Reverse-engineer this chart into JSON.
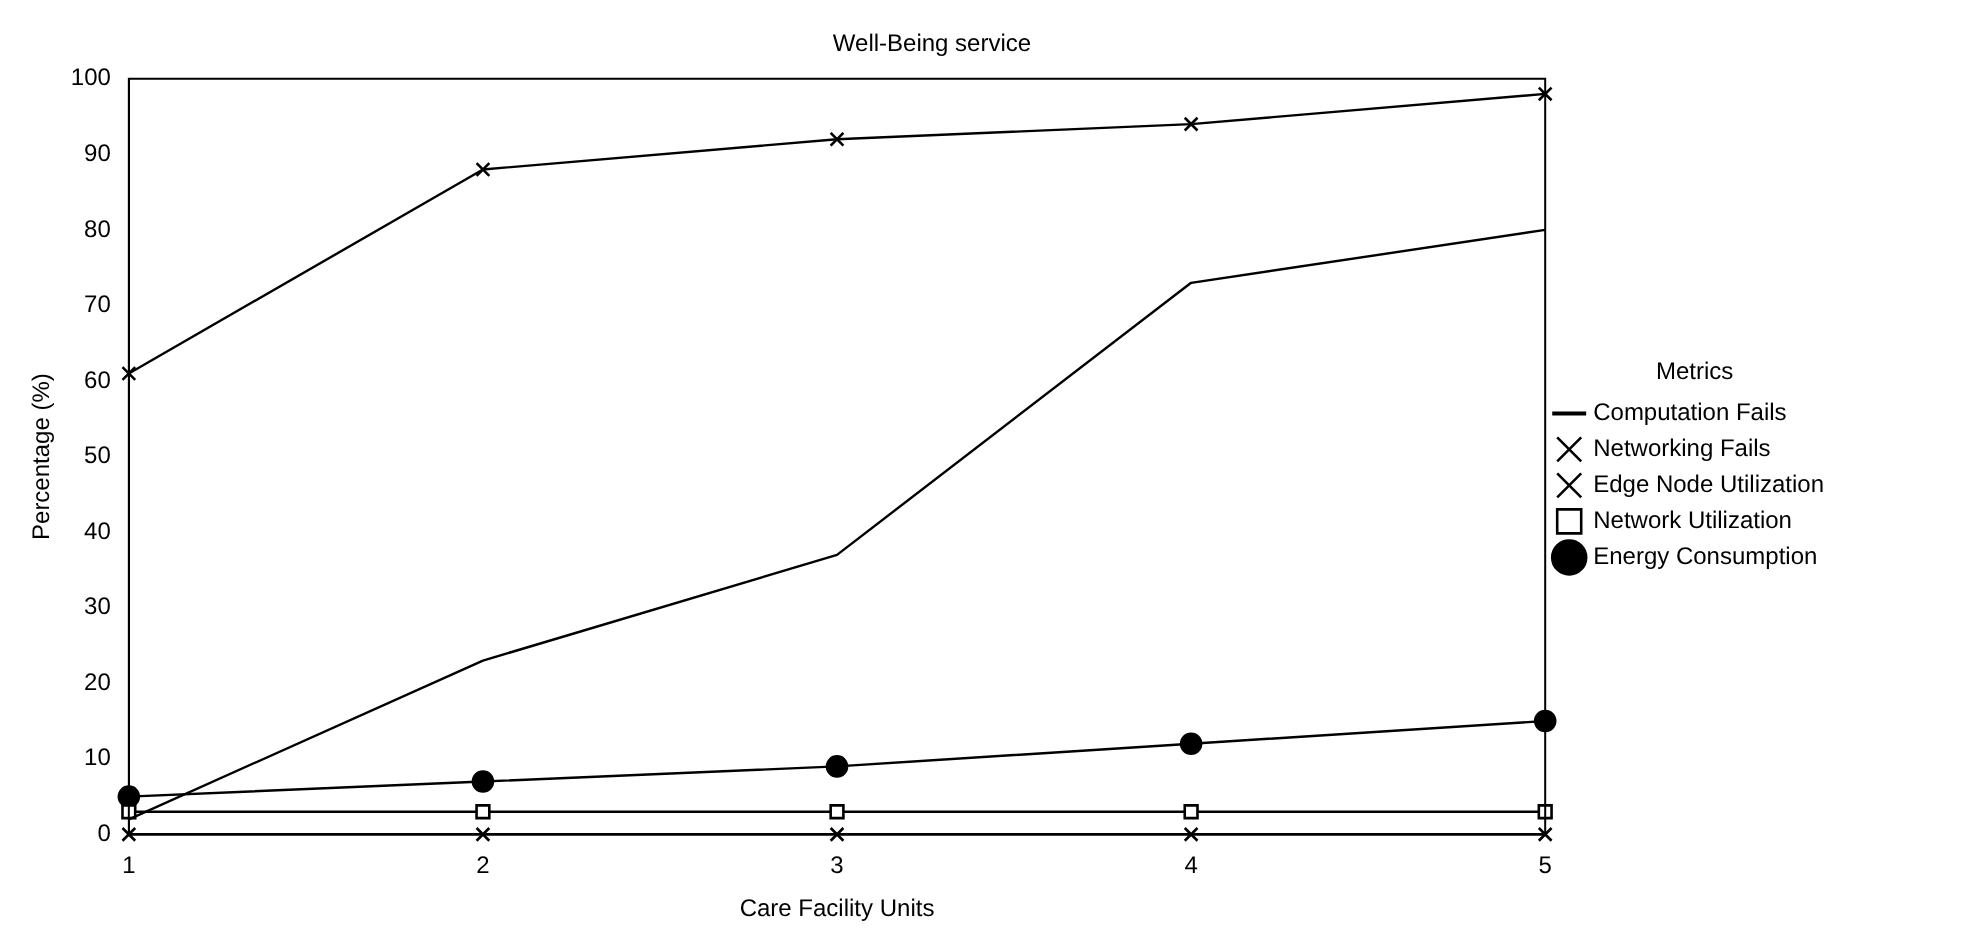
{
  "chart_data": {
    "type": "line",
    "title": "Well-Being service",
    "xlabel": "Care Facility Units",
    "ylabel": "Percentage (%)",
    "legend_title": "Metrics",
    "x": [
      1,
      2,
      3,
      4,
      5
    ],
    "xlim": [
      1,
      5
    ],
    "xticks": [
      1,
      2,
      3,
      4,
      5
    ],
    "ylim": [
      0,
      100
    ],
    "yticks": [
      0,
      10,
      20,
      30,
      40,
      50,
      60,
      70,
      80,
      90,
      100
    ],
    "grid": false,
    "legend": "right",
    "line_style": "solid",
    "series": [
      {
        "name": "Computation Fails",
        "color": "#000000",
        "marker": "none",
        "values": [
          2,
          23,
          37,
          73,
          80
        ]
      },
      {
        "name": "Networking Fails",
        "color": "#000000",
        "marker": "cross",
        "values": [
          0,
          0,
          0,
          0,
          0
        ]
      },
      {
        "name": "Edge Node Utilization",
        "color": "#000000",
        "marker": "cross",
        "values": [
          61,
          88,
          92,
          94,
          98
        ]
      },
      {
        "name": "Network Utilization",
        "color": "#000000",
        "marker": "square",
        "values": [
          3,
          3,
          3,
          3,
          3
        ]
      },
      {
        "name": "Energy Consumption",
        "color": "#000000",
        "marker": "circle",
        "values": [
          5,
          7,
          9,
          12,
          15
        ]
      }
    ]
  }
}
